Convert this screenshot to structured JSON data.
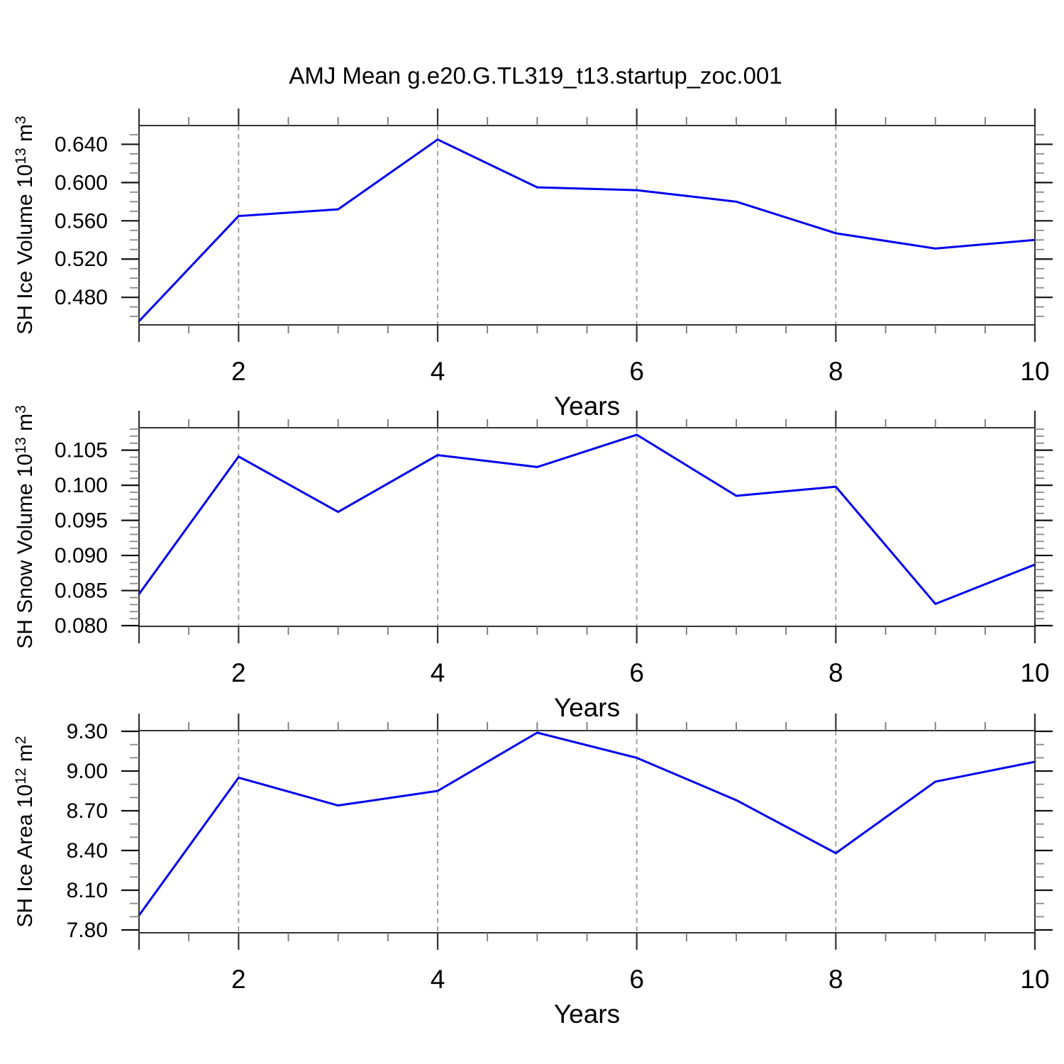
{
  "title": "AMJ Mean g.e20.G.TL319_t13.startup_zoc.001",
  "colors": {
    "line": "#0000ee",
    "frame": "#333333",
    "grid": "#999999",
    "tick_major": "#111111",
    "tick_minor": "#8a8a8a",
    "tick_minor_x": "#777777",
    "background": "#ffffff",
    "text": "#000000"
  },
  "chart_data": [
    {
      "type": "line",
      "ylabel_parts": [
        {
          "t": "SH Ice Volume 10",
          "sup": false
        },
        {
          "t": "13",
          "sup": true
        },
        {
          "t": " m",
          "sup": false
        },
        {
          "t": "3",
          "sup": true
        }
      ],
      "xlabel": "Years",
      "x": [
        1,
        2,
        3,
        4,
        5,
        6,
        7,
        8,
        9,
        10
      ],
      "y": [
        0.455,
        0.565,
        0.572,
        0.645,
        0.595,
        0.592,
        0.58,
        0.547,
        0.531,
        0.54
      ],
      "xlim": [
        1,
        10
      ],
      "ylim": [
        0.4512,
        0.6596
      ],
      "yticks": [
        {
          "v": 0.48,
          "t": "0.480"
        },
        {
          "v": 0.52,
          "t": "0.520"
        },
        {
          "v": 0.56,
          "t": "0.560"
        },
        {
          "v": 0.6,
          "t": "0.600"
        },
        {
          "v": 0.64,
          "t": "0.640"
        }
      ],
      "y_minor_step": 0.01,
      "xticks": [
        {
          "v": 2,
          "t": "2"
        },
        {
          "v": 4,
          "t": "4"
        },
        {
          "v": 6,
          "t": "6"
        },
        {
          "v": 8,
          "t": "8"
        },
        {
          "v": 10,
          "t": "10"
        }
      ],
      "x_corner_ticks": [
        1,
        10
      ],
      "x_minor_step": 0.5,
      "grid_x": [
        2,
        4,
        6,
        8
      ],
      "grid_style": "dashed",
      "legend": "none"
    },
    {
      "type": "line",
      "ylabel_parts": [
        {
          "t": "SH Snow Volume 10",
          "sup": false
        },
        {
          "t": "13",
          "sup": true
        },
        {
          "t": " m",
          "sup": false
        },
        {
          "t": "3",
          "sup": true
        }
      ],
      "xlabel": "Years",
      "x": [
        1,
        2,
        3,
        4,
        5,
        6,
        7,
        8,
        9,
        10
      ],
      "y": [
        0.0845,
        0.1041,
        0.0962,
        0.1043,
        0.1026,
        0.1072,
        0.0985,
        0.0998,
        0.0831,
        0.0887
      ],
      "xlim": [
        1,
        10
      ],
      "ylim": [
        0.0799,
        0.1082
      ],
      "yticks": [
        {
          "v": 0.08,
          "t": "0.080"
        },
        {
          "v": 0.085,
          "t": "0.085"
        },
        {
          "v": 0.09,
          "t": "0.090"
        },
        {
          "v": 0.095,
          "t": "0.095"
        },
        {
          "v": 0.1,
          "t": "0.100"
        },
        {
          "v": 0.105,
          "t": "0.105"
        }
      ],
      "y_minor_step": 0.001,
      "xticks": [
        {
          "v": 2,
          "t": "2"
        },
        {
          "v": 4,
          "t": "4"
        },
        {
          "v": 6,
          "t": "6"
        },
        {
          "v": 8,
          "t": "8"
        },
        {
          "v": 10,
          "t": "10"
        }
      ],
      "x_corner_ticks": [
        1,
        10
      ],
      "x_minor_step": 0.5,
      "grid_x": [
        2,
        4,
        6,
        8
      ],
      "grid_style": "dashed",
      "legend": "none"
    },
    {
      "type": "line",
      "ylabel_parts": [
        {
          "t": "SH Ice Area 10",
          "sup": false
        },
        {
          "t": "12",
          "sup": true
        },
        {
          "t": " m",
          "sup": false
        },
        {
          "t": "2",
          "sup": true
        }
      ],
      "xlabel": "Years",
      "x": [
        1,
        2,
        3,
        4,
        5,
        6,
        7,
        8,
        9,
        10
      ],
      "y": [
        7.91,
        8.95,
        8.74,
        8.85,
        9.29,
        9.1,
        8.78,
        8.38,
        8.92,
        9.07
      ],
      "xlim": [
        1,
        10
      ],
      "ylim": [
        7.7786,
        9.3054
      ],
      "yticks": [
        {
          "v": 7.8,
          "t": "7.80"
        },
        {
          "v": 8.1,
          "t": "8.10"
        },
        {
          "v": 8.4,
          "t": "8.40"
        },
        {
          "v": 8.7,
          "t": "8.70"
        },
        {
          "v": 9.0,
          "t": "9.00"
        },
        {
          "v": 9.3,
          "t": "9.30"
        }
      ],
      "y_minor_step": 0.1,
      "xticks": [
        {
          "v": 2,
          "t": "2"
        },
        {
          "v": 4,
          "t": "4"
        },
        {
          "v": 6,
          "t": "6"
        },
        {
          "v": 8,
          "t": "8"
        },
        {
          "v": 10,
          "t": "10"
        }
      ],
      "x_corner_ticks": [
        1,
        10
      ],
      "x_minor_step": 0.5,
      "grid_x": [
        2,
        4,
        6,
        8
      ],
      "grid_style": "dashed",
      "legend": "none"
    }
  ]
}
